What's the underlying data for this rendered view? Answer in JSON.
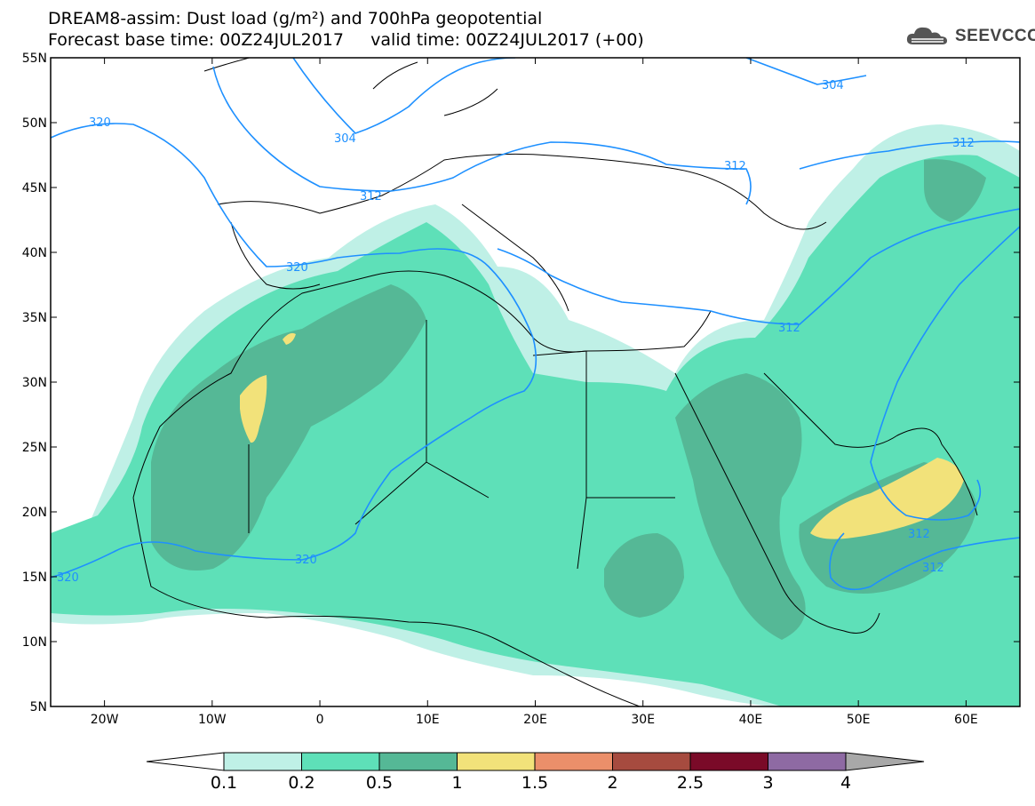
{
  "header": {
    "title_line1": "DREAM8-assim: Dust load (g/m²) and 700hPa geopotential",
    "title_line2": "Forecast base time: 00Z24JUL2017     valid time: 00Z24JUL2017 (+00)",
    "logo_text": "SEEVCCC"
  },
  "map": {
    "lon_range": [
      -25,
      65
    ],
    "lat_range": [
      5,
      55
    ],
    "lat_ticks": [
      "55N",
      "50N",
      "45N",
      "40N",
      "35N",
      "30N",
      "25N",
      "20N",
      "15N",
      "10N",
      "5N"
    ],
    "lon_ticks": [
      "20W",
      "10W",
      "0",
      "10E",
      "20E",
      "30E",
      "40E",
      "50E",
      "60E"
    ],
    "contour_color": "#1e90ff",
    "contour_labels": [
      "304",
      "304",
      "312",
      "312",
      "312",
      "312",
      "312",
      "320",
      "320",
      "320"
    ]
  },
  "legend": {
    "tick_labels": [
      "0.1",
      "0.2",
      "0.5",
      "1",
      "1.5",
      "2",
      "2.5",
      "3",
      "4"
    ],
    "colors": [
      "#bff0e6",
      "#5ee0b8",
      "#55b896",
      "#f2e27a",
      "#eb8f6a",
      "#a64b3f",
      "#7a0a28",
      "#8e6aa3",
      "#a8a8a8"
    ]
  }
}
